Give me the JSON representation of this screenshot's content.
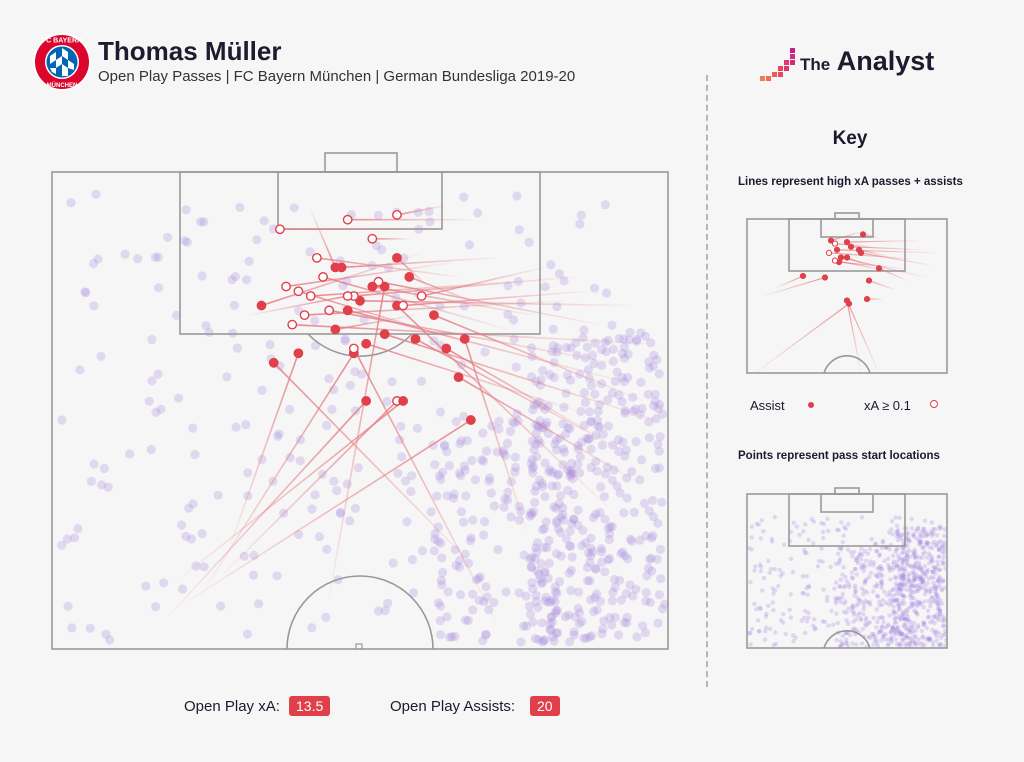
{
  "header": {
    "title": "Thomas Müller",
    "subtitle": "Open Play Passes | FC Bayern München | German Bundesliga 2019-20",
    "club_logo_icon": "fc-bayern-munchen-crest-icon",
    "club_logo_text_top": "FC BAYERN",
    "club_logo_text_bottom": "MÜNCHEN"
  },
  "brand": {
    "prefix": "The",
    "name": "Analyst",
    "icon": "the-analyst-pixel-logo-icon"
  },
  "key": {
    "title": "Key",
    "lines_caption": "Lines represent high xA passes + assists",
    "points_caption": "Points represent pass start locations",
    "assist_label": "Assist",
    "xa_label": "xA ≥ 0.1"
  },
  "stats": {
    "xa_label": "Open Play xA:",
    "xa_value": "13.5",
    "assists_label": "Open Play Assists:",
    "assists_value": "20"
  },
  "colors": {
    "assist": "#e0404a",
    "line": "#e57f86",
    "point": "#a98be0",
    "pitch_line": "#9a9a9a",
    "background": "#f6f6f6"
  },
  "chart_data": {
    "type": "scatter",
    "pitch": "half-pitch, attacking toward top",
    "passes": [
      {
        "start": [
          19,
          93
        ],
        "end": [
          51,
          48
        ],
        "kind": "assist"
      },
      {
        "start": [
          22,
          90
        ],
        "end": [
          68,
          52
        ],
        "kind": "assist"
      },
      {
        "start": [
          25,
          87
        ],
        "end": [
          49,
          38
        ],
        "kind": "assist"
      },
      {
        "start": [
          28,
          84
        ],
        "end": [
          56,
          48
        ],
        "kind": "xa"
      },
      {
        "start": [
          21,
          85
        ],
        "end": [
          57,
          48
        ],
        "kind": "assist"
      },
      {
        "start": [
          29,
          78
        ],
        "end": [
          40,
          38
        ],
        "kind": "assist"
      },
      {
        "start": [
          45,
          89
        ],
        "end": [
          54,
          24
        ],
        "kind": "assist"
      },
      {
        "start": [
          72,
          94
        ],
        "end": [
          49,
          37
        ],
        "kind": "xa"
      },
      {
        "start": [
          68,
          82
        ],
        "end": [
          36,
          40
        ],
        "kind": "assist"
      },
      {
        "start": [
          77,
          75
        ],
        "end": [
          67,
          35
        ],
        "kind": "assist"
      },
      {
        "start": [
          90,
          70
        ],
        "end": [
          56,
          28
        ],
        "kind": "assist"
      },
      {
        "start": [
          95,
          65
        ],
        "end": [
          66,
          43
        ],
        "kind": "assist"
      },
      {
        "start": [
          92,
          58
        ],
        "end": [
          59,
          35
        ],
        "kind": "assist"
      },
      {
        "start": [
          88,
          55
        ],
        "end": [
          64,
          37
        ],
        "kind": "assist"
      },
      {
        "start": [
          85,
          50
        ],
        "end": [
          51,
          36
        ],
        "kind": "assist"
      },
      {
        "start": [
          96,
          48
        ],
        "end": [
          62,
          30
        ],
        "kind": "assist"
      },
      {
        "start": [
          98,
          52
        ],
        "end": [
          54,
          34
        ],
        "kind": "assist"
      },
      {
        "start": [
          93,
          44
        ],
        "end": [
          48,
          29
        ],
        "kind": "assist"
      },
      {
        "start": [
          91,
          40
        ],
        "end": [
          45,
          29
        ],
        "kind": "xa"
      },
      {
        "start": [
          97,
          36
        ],
        "end": [
          39,
          32
        ],
        "kind": "xa"
      },
      {
        "start": [
          89,
          32
        ],
        "end": [
          53,
          23
        ],
        "kind": "xa"
      },
      {
        "start": [
          94,
          28
        ],
        "end": [
          50,
          27
        ],
        "kind": "assist"
      },
      {
        "start": [
          87,
          25
        ],
        "end": [
          57,
          28
        ],
        "kind": "xa"
      },
      {
        "start": [
          85,
          22
        ],
        "end": [
          49,
          26
        ],
        "kind": "xa"
      },
      {
        "start": [
          83,
          27
        ],
        "end": [
          41,
          30
        ],
        "kind": "xa"
      },
      {
        "start": [
          80,
          20
        ],
        "end": [
          60,
          26
        ],
        "kind": "xa"
      },
      {
        "start": [
          78,
          30
        ],
        "end": [
          52,
          24
        ],
        "kind": "assist"
      },
      {
        "start": [
          75,
          23
        ],
        "end": [
          42,
          26
        ],
        "kind": "xa"
      },
      {
        "start": [
          72,
          18
        ],
        "end": [
          47,
          20
        ],
        "kind": "assist"
      },
      {
        "start": [
          65,
          19
        ],
        "end": [
          38,
          24
        ],
        "kind": "xa"
      },
      {
        "start": [
          60,
          17
        ],
        "end": [
          34,
          28
        ],
        "kind": "assist"
      },
      {
        "start": [
          70,
          28
        ],
        "end": [
          58,
          22
        ],
        "kind": "assist"
      },
      {
        "start": [
          74,
          33
        ],
        "end": [
          44,
          22
        ],
        "kind": "xa"
      },
      {
        "start": [
          68,
          36
        ],
        "end": [
          40,
          25
        ],
        "kind": "xa"
      },
      {
        "start": [
          66,
          22
        ],
        "end": [
          43,
          18
        ],
        "kind": "xa"
      },
      {
        "start": [
          62,
          12
        ],
        "end": [
          37,
          12
        ],
        "kind": "xa"
      },
      {
        "start": [
          68,
          10
        ],
        "end": [
          48,
          10
        ],
        "kind": "xa"
      },
      {
        "start": [
          64,
          7
        ],
        "end": [
          56,
          9
        ],
        "kind": "xa"
      },
      {
        "start": [
          58,
          14
        ],
        "end": [
          52,
          14
        ],
        "kind": "xa"
      },
      {
        "start": [
          61,
          24
        ],
        "end": [
          56,
          18
        ],
        "kind": "assist"
      },
      {
        "start": [
          59,
          30
        ],
        "end": [
          46,
          33
        ],
        "kind": "assist"
      },
      {
        "start": [
          42,
          8
        ],
        "end": [
          46,
          20
        ],
        "kind": "assist"
      },
      {
        "start": [
          32,
          30
        ],
        "end": [
          48,
          26
        ],
        "kind": "xa"
      }
    ],
    "mini_passes": [
      {
        "start": [
          4,
          100
        ],
        "end": [
          51,
          55
        ],
        "kind": "assist"
      },
      {
        "start": [
          57,
          100
        ],
        "end": [
          50,
          53
        ],
        "kind": "xa"
      },
      {
        "start": [
          66,
          100
        ],
        "end": [
          50,
          53
        ],
        "kind": "assist"
      },
      {
        "start": [
          8,
          50
        ],
        "end": [
          39,
          38
        ],
        "kind": "assist"
      },
      {
        "start": [
          14,
          45
        ],
        "end": [
          28,
          37
        ],
        "kind": "assist"
      },
      {
        "start": [
          68,
          52
        ],
        "end": [
          60,
          52
        ],
        "kind": "assist"
      },
      {
        "start": [
          90,
          38
        ],
        "end": [
          47,
          25
        ],
        "kind": "assist"
      },
      {
        "start": [
          92,
          30
        ],
        "end": [
          57,
          22
        ],
        "kind": "assist"
      },
      {
        "start": [
          95,
          22
        ],
        "end": [
          45,
          20
        ],
        "kind": "assist"
      },
      {
        "start": [
          88,
          20
        ],
        "end": [
          52,
          18
        ],
        "kind": "assist"
      },
      {
        "start": [
          85,
          14
        ],
        "end": [
          50,
          15
        ],
        "kind": "assist"
      },
      {
        "start": [
          83,
          26
        ],
        "end": [
          41,
          22
        ],
        "kind": "xa"
      },
      {
        "start": [
          78,
          32
        ],
        "end": [
          46,
          28
        ],
        "kind": "assist"
      },
      {
        "start": [
          80,
          40
        ],
        "end": [
          66,
          32
        ],
        "kind": "assist"
      },
      {
        "start": [
          72,
          34
        ],
        "end": [
          44,
          27
        ],
        "kind": "xa"
      },
      {
        "start": [
          70,
          24
        ],
        "end": [
          56,
          20
        ],
        "kind": "assist"
      },
      {
        "start": [
          66,
          12
        ],
        "end": [
          58,
          10
        ],
        "kind": "assist"
      },
      {
        "start": [
          62,
          18
        ],
        "end": [
          44,
          16
        ],
        "kind": "xa"
      },
      {
        "start": [
          58,
          8
        ],
        "end": [
          42,
          14
        ],
        "kind": "assist"
      },
      {
        "start": [
          60,
          30
        ],
        "end": [
          50,
          25
        ],
        "kind": "assist"
      },
      {
        "start": [
          74,
          46
        ],
        "end": [
          61,
          40
        ],
        "kind": "assist"
      }
    ],
    "point_density": "concentrated on right flank and inside opposition half"
  }
}
